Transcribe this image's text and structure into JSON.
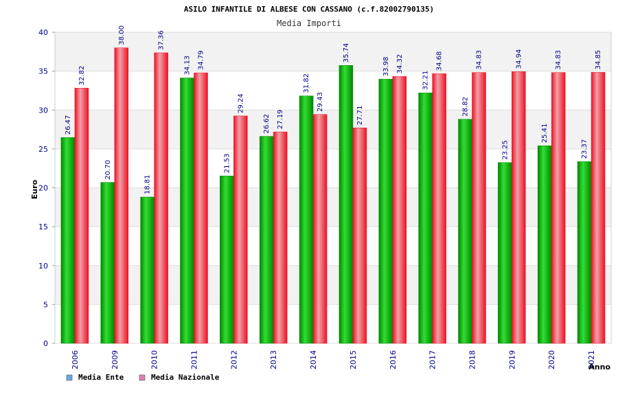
{
  "colors": {
    "ente_light": "#33dd33",
    "ente_dark": "#008800",
    "naz_light": "#f0a0a8",
    "naz_dark": "#ee1122",
    "legend_ente": "#6aa6e8",
    "legend_naz": "#e080b0",
    "axis_text": "#00008b",
    "band": "#f2f2f2"
  },
  "chart_data": {
    "type": "bar",
    "title": "ASILO INFANTILE DI ALBESE CON CASSANO (c.f.82002790135)",
    "subtitle": "Media Importi",
    "ylabel": "Euro",
    "xlabel": "Anno",
    "ylim": [
      0,
      40
    ],
    "yticks": [
      0,
      5,
      10,
      15,
      20,
      25,
      30,
      35,
      40
    ],
    "grid": true,
    "legend_position": "bottom-left",
    "categories": [
      "2006",
      "2009",
      "2010",
      "2011",
      "2012",
      "2013",
      "2014",
      "2015",
      "2016",
      "2017",
      "2018",
      "2019",
      "2020",
      "2021"
    ],
    "series": [
      {
        "name": "Media Ente",
        "values": [
          26.47,
          20.7,
          18.81,
          34.13,
          21.53,
          26.62,
          31.82,
          35.74,
          33.98,
          32.21,
          28.82,
          23.25,
          25.41,
          23.37
        ],
        "labels": [
          "26.47",
          "20.70",
          "18.81",
          "34.13",
          "21.53",
          "26.62",
          "31.82",
          "35.74",
          "33.98",
          "32.21",
          "28.82",
          "23.25",
          "25.41",
          "23.37"
        ]
      },
      {
        "name": "Media Nazionale",
        "values": [
          32.82,
          38.0,
          37.36,
          34.79,
          29.24,
          27.19,
          29.43,
          27.71,
          34.32,
          34.68,
          34.83,
          34.94,
          34.83,
          34.85
        ],
        "labels": [
          "32.82",
          "38.00",
          "37.36",
          "34.79",
          "29.24",
          "27.19",
          "29.43",
          "27.71",
          "34.32",
          "34.68",
          "34.83",
          "34.94",
          "34.83",
          "34.85"
        ]
      }
    ]
  }
}
